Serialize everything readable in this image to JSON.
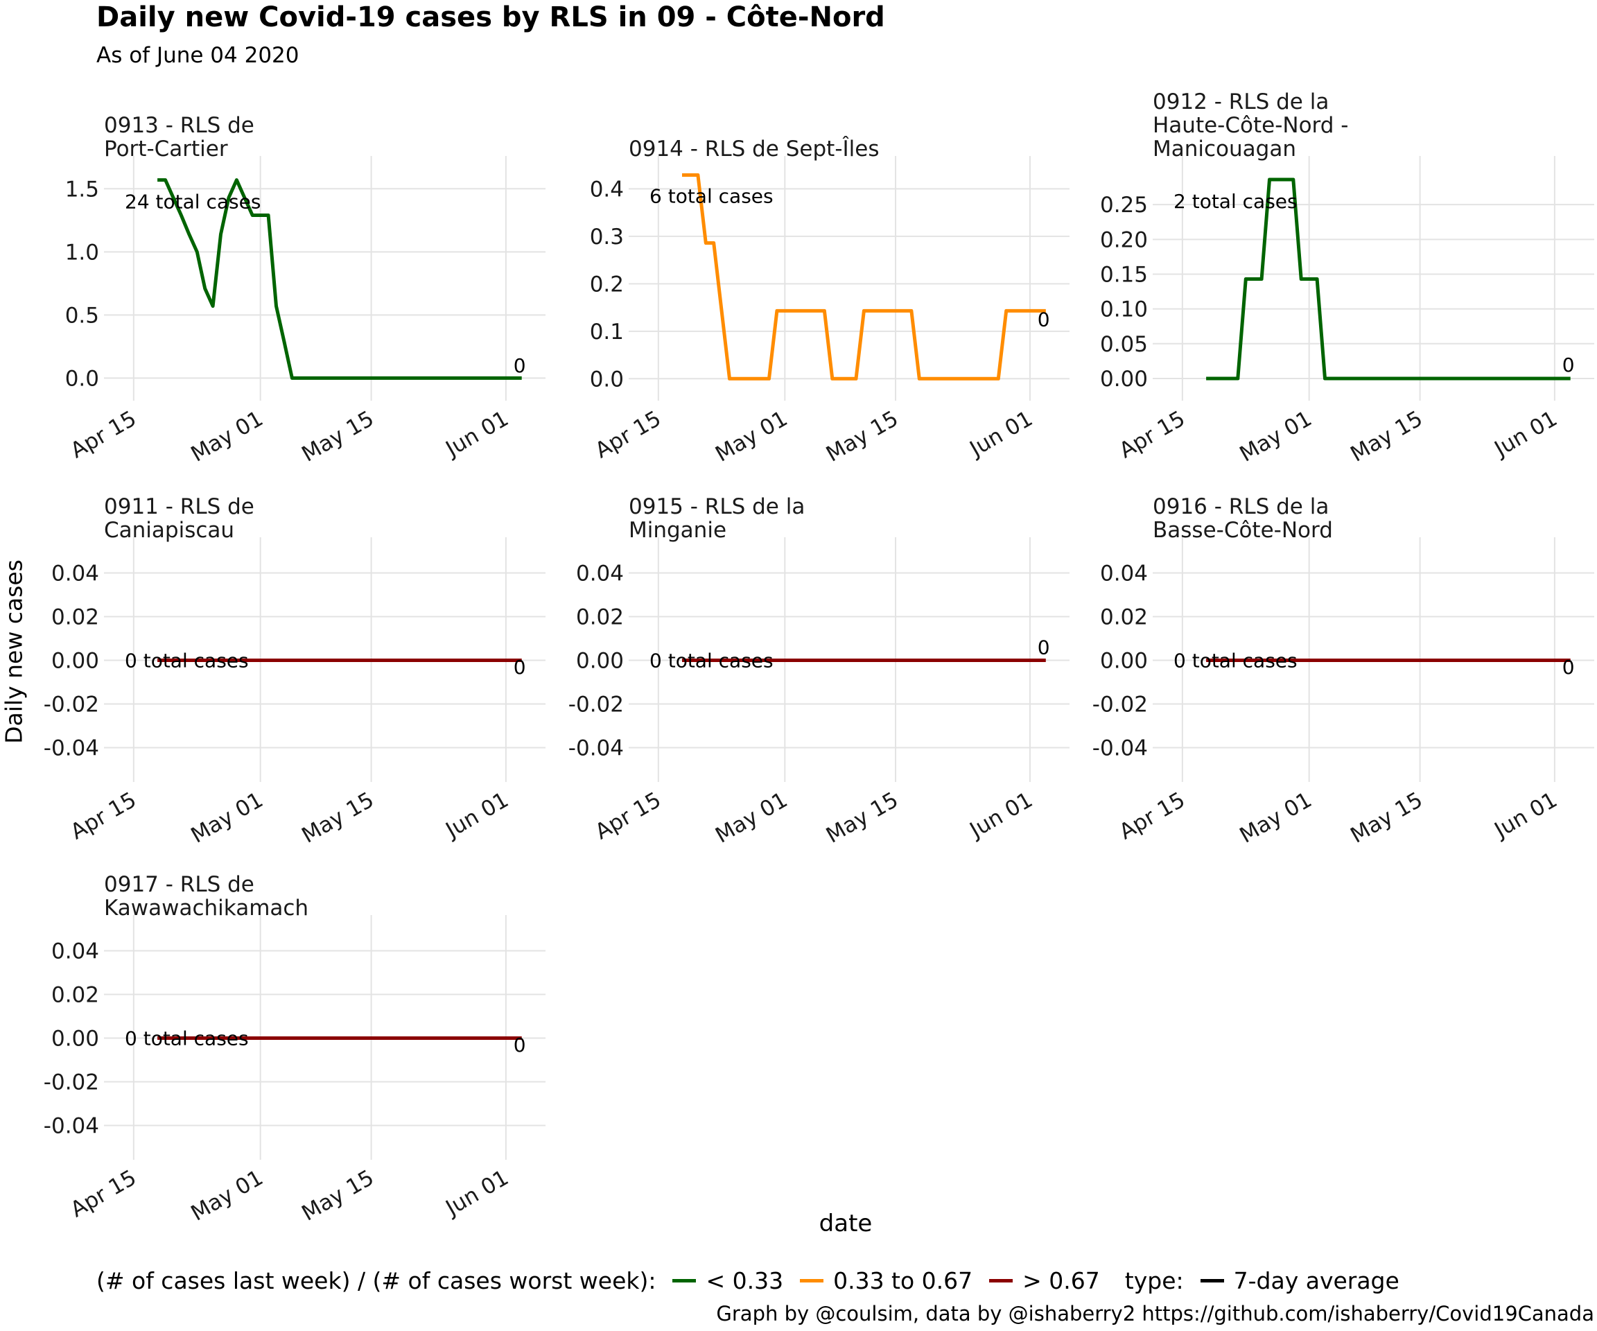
{
  "title": "Daily new Covid-19 cases by RLS in 09 - Côte-Nord",
  "subtitle": "As of June 04 2020",
  "xlabel": "date",
  "ylabel": "Daily new cases",
  "caption": "Graph by @coulsim, data by @ishaberry2 https://github.com/ishaberry/Covid19Canada",
  "legend": {
    "title": "(# of cases last week) / (# of cases worst week):",
    "items": [
      {
        "label": "< 0.33",
        "color": "#006400"
      },
      {
        "label": "0.33 to 0.67",
        "color": "#FF8C00"
      },
      {
        "label": "> 0.67",
        "color": "#8B0000"
      }
    ],
    "type_title": "type:",
    "type_items": [
      {
        "label": "7-day average",
        "color": "#000000"
      }
    ]
  },
  "colors": {
    "green": "#006400",
    "orange": "#FF8C00",
    "red": "#8B0000",
    "grid": "#e5e5e5"
  },
  "chart_data": [
    {
      "type": "line",
      "facet": "0913 - RLS de\nPort-Cartier",
      "color": "#006400",
      "ylim": [
        -0.08,
        1.65
      ],
      "yticks": [
        0.0,
        0.5,
        1.0,
        1.5
      ],
      "ytick_labels": [
        "0.0",
        "0.5",
        "1.0",
        "1.5"
      ],
      "xlim": [
        "2020-04-13",
        "2020-06-06"
      ],
      "xticks": [
        "2020-04-15",
        "2020-05-01",
        "2020-05-15",
        "2020-06-01"
      ],
      "xtick_labels": [
        "Apr 15",
        "May 01",
        "May 15",
        "Jun 01"
      ],
      "x": [
        "2020-04-18",
        "2020-04-19",
        "2020-04-20",
        "2020-04-21",
        "2020-04-22",
        "2020-04-23",
        "2020-04-24",
        "2020-04-25",
        "2020-04-26",
        "2020-04-27",
        "2020-04-28",
        "2020-04-29",
        "2020-04-30",
        "2020-05-01",
        "2020-05-02",
        "2020-05-03",
        "2020-05-04",
        "2020-05-05",
        "2020-05-06",
        "2020-05-07",
        "2020-06-03"
      ],
      "y": [
        1.57,
        1.57,
        1.43,
        1.29,
        1.14,
        1.0,
        0.71,
        0.57,
        1.14,
        1.43,
        1.57,
        1.43,
        1.29,
        1.29,
        1.29,
        0.57,
        0.29,
        0.0,
        0.0,
        0.0,
        0.0
      ],
      "total_label": "24 total cases",
      "total_label_y": 1.4,
      "end_label": "0",
      "end_label_y": 0.1
    },
    {
      "type": "line",
      "facet": "0914 - RLS de Sept-Îles",
      "color": "#FF8C00",
      "ylim": [
        -0.02,
        0.44
      ],
      "yticks": [
        0.0,
        0.1,
        0.2,
        0.3,
        0.4
      ],
      "ytick_labels": [
        "0.0",
        "0.1",
        "0.2",
        "0.3",
        "0.4"
      ],
      "xlim": [
        "2020-04-13",
        "2020-06-06"
      ],
      "xticks": [
        "2020-04-15",
        "2020-05-01",
        "2020-05-15",
        "2020-06-01"
      ],
      "xtick_labels": [
        "Apr 15",
        "May 01",
        "May 15",
        "Jun 01"
      ],
      "x": [
        "2020-04-18",
        "2020-04-20",
        "2020-04-21",
        "2020-04-22",
        "2020-04-23",
        "2020-04-24",
        "2020-04-29",
        "2020-04-30",
        "2020-05-06",
        "2020-05-07",
        "2020-05-10",
        "2020-05-11",
        "2020-05-17",
        "2020-05-18",
        "2020-05-28",
        "2020-05-29",
        "2020-06-03"
      ],
      "y": [
        0.429,
        0.429,
        0.286,
        0.286,
        0.143,
        0.0,
        0.0,
        0.143,
        0.143,
        0.0,
        0.0,
        0.143,
        0.143,
        0.0,
        0.0,
        0.143,
        0.143
      ],
      "total_label": "6 total cases",
      "total_label_y": 0.385,
      "end_label": "0",
      "end_label_y": 0.125
    },
    {
      "type": "line",
      "facet": "0912 - RLS de la\nHaute-Côte-Nord -\nManicouagan",
      "color": "#006400",
      "ylim": [
        -0.014,
        0.3
      ],
      "yticks": [
        0.0,
        0.05,
        0.1,
        0.15,
        0.2,
        0.25
      ],
      "ytick_labels": [
        "0.00",
        "0.05",
        "0.10",
        "0.15",
        "0.20",
        "0.25"
      ],
      "xlim": [
        "2020-04-13",
        "2020-06-06"
      ],
      "xticks": [
        "2020-04-15",
        "2020-05-01",
        "2020-05-15",
        "2020-06-01"
      ],
      "xtick_labels": [
        "Apr 15",
        "May 01",
        "May 15",
        "Jun 01"
      ],
      "x": [
        "2020-04-18",
        "2020-04-22",
        "2020-04-23",
        "2020-04-25",
        "2020-04-26",
        "2020-04-29",
        "2020-04-30",
        "2020-05-02",
        "2020-05-03",
        "2020-06-03"
      ],
      "y": [
        0.0,
        0.0,
        0.143,
        0.143,
        0.286,
        0.286,
        0.143,
        0.143,
        0.0,
        0.0
      ],
      "total_label": "2 total cases",
      "total_label_y": 0.255,
      "end_label": "0",
      "end_label_y": 0.02
    },
    {
      "type": "line",
      "facet": "0911 - RLS de\nCaniapiscau",
      "color": "#8B0000",
      "ylim": [
        -0.05,
        0.05
      ],
      "yticks": [
        -0.04,
        -0.02,
        0.0,
        0.02,
        0.04
      ],
      "ytick_labels": [
        "-0.04",
        "-0.02",
        "0.00",
        "0.02",
        "0.04"
      ],
      "xlim": [
        "2020-04-13",
        "2020-06-06"
      ],
      "xticks": [
        "2020-04-15",
        "2020-05-01",
        "2020-05-15",
        "2020-06-01"
      ],
      "xtick_labels": [
        "Apr 15",
        "May 01",
        "May 15",
        "Jun 01"
      ],
      "x": [
        "2020-04-18",
        "2020-06-03"
      ],
      "y": [
        0.0,
        0.0
      ],
      "total_label": "0 total cases",
      "total_label_y": 0.0,
      "end_label": "0",
      "end_label_y": -0.003
    },
    {
      "type": "line",
      "facet": "0915 - RLS de la\nMinganie",
      "color": "#8B0000",
      "ylim": [
        -0.05,
        0.05
      ],
      "yticks": [
        -0.04,
        -0.02,
        0.0,
        0.02,
        0.04
      ],
      "ytick_labels": [
        "-0.04",
        "-0.02",
        "0.00",
        "0.02",
        "0.04"
      ],
      "xlim": [
        "2020-04-13",
        "2020-06-06"
      ],
      "xticks": [
        "2020-04-15",
        "2020-05-01",
        "2020-05-15",
        "2020-06-01"
      ],
      "xtick_labels": [
        "Apr 15",
        "May 01",
        "May 15",
        "Jun 01"
      ],
      "x": [
        "2020-04-18",
        "2020-06-03"
      ],
      "y": [
        0.0,
        0.0
      ],
      "total_label": "0 total cases",
      "total_label_y": 0.0,
      "end_label": "0",
      "end_label_y": 0.006
    },
    {
      "type": "line",
      "facet": "0916 - RLS de la\nBasse-Côte-Nord",
      "color": "#8B0000",
      "ylim": [
        -0.05,
        0.05
      ],
      "yticks": [
        -0.04,
        -0.02,
        0.0,
        0.02,
        0.04
      ],
      "ytick_labels": [
        "-0.04",
        "-0.02",
        "0.00",
        "0.02",
        "0.04"
      ],
      "xlim": [
        "2020-04-13",
        "2020-06-06"
      ],
      "xticks": [
        "2020-04-15",
        "2020-05-01",
        "2020-05-15",
        "2020-06-01"
      ],
      "xtick_labels": [
        "Apr 15",
        "May 01",
        "May 15",
        "Jun 01"
      ],
      "x": [
        "2020-04-18",
        "2020-06-03"
      ],
      "y": [
        0.0,
        0.0
      ],
      "total_label": "0 total cases",
      "total_label_y": 0.0,
      "end_label": "0",
      "end_label_y": -0.003
    },
    {
      "type": "line",
      "facet": "0917 - RLS de\nKawawachikamach",
      "color": "#8B0000",
      "ylim": [
        -0.05,
        0.05
      ],
      "yticks": [
        -0.04,
        -0.02,
        0.0,
        0.02,
        0.04
      ],
      "ytick_labels": [
        "-0.04",
        "-0.02",
        "0.00",
        "0.02",
        "0.04"
      ],
      "xlim": [
        "2020-04-13",
        "2020-06-06"
      ],
      "xticks": [
        "2020-04-15",
        "2020-05-01",
        "2020-05-15",
        "2020-06-01"
      ],
      "xtick_labels": [
        "Apr 15",
        "May 01",
        "May 15",
        "Jun 01"
      ],
      "x": [
        "2020-04-18",
        "2020-06-03"
      ],
      "y": [
        0.0,
        0.0
      ],
      "total_label": "0 total cases",
      "total_label_y": 0.0,
      "end_label": "0",
      "end_label_y": -0.003
    }
  ]
}
